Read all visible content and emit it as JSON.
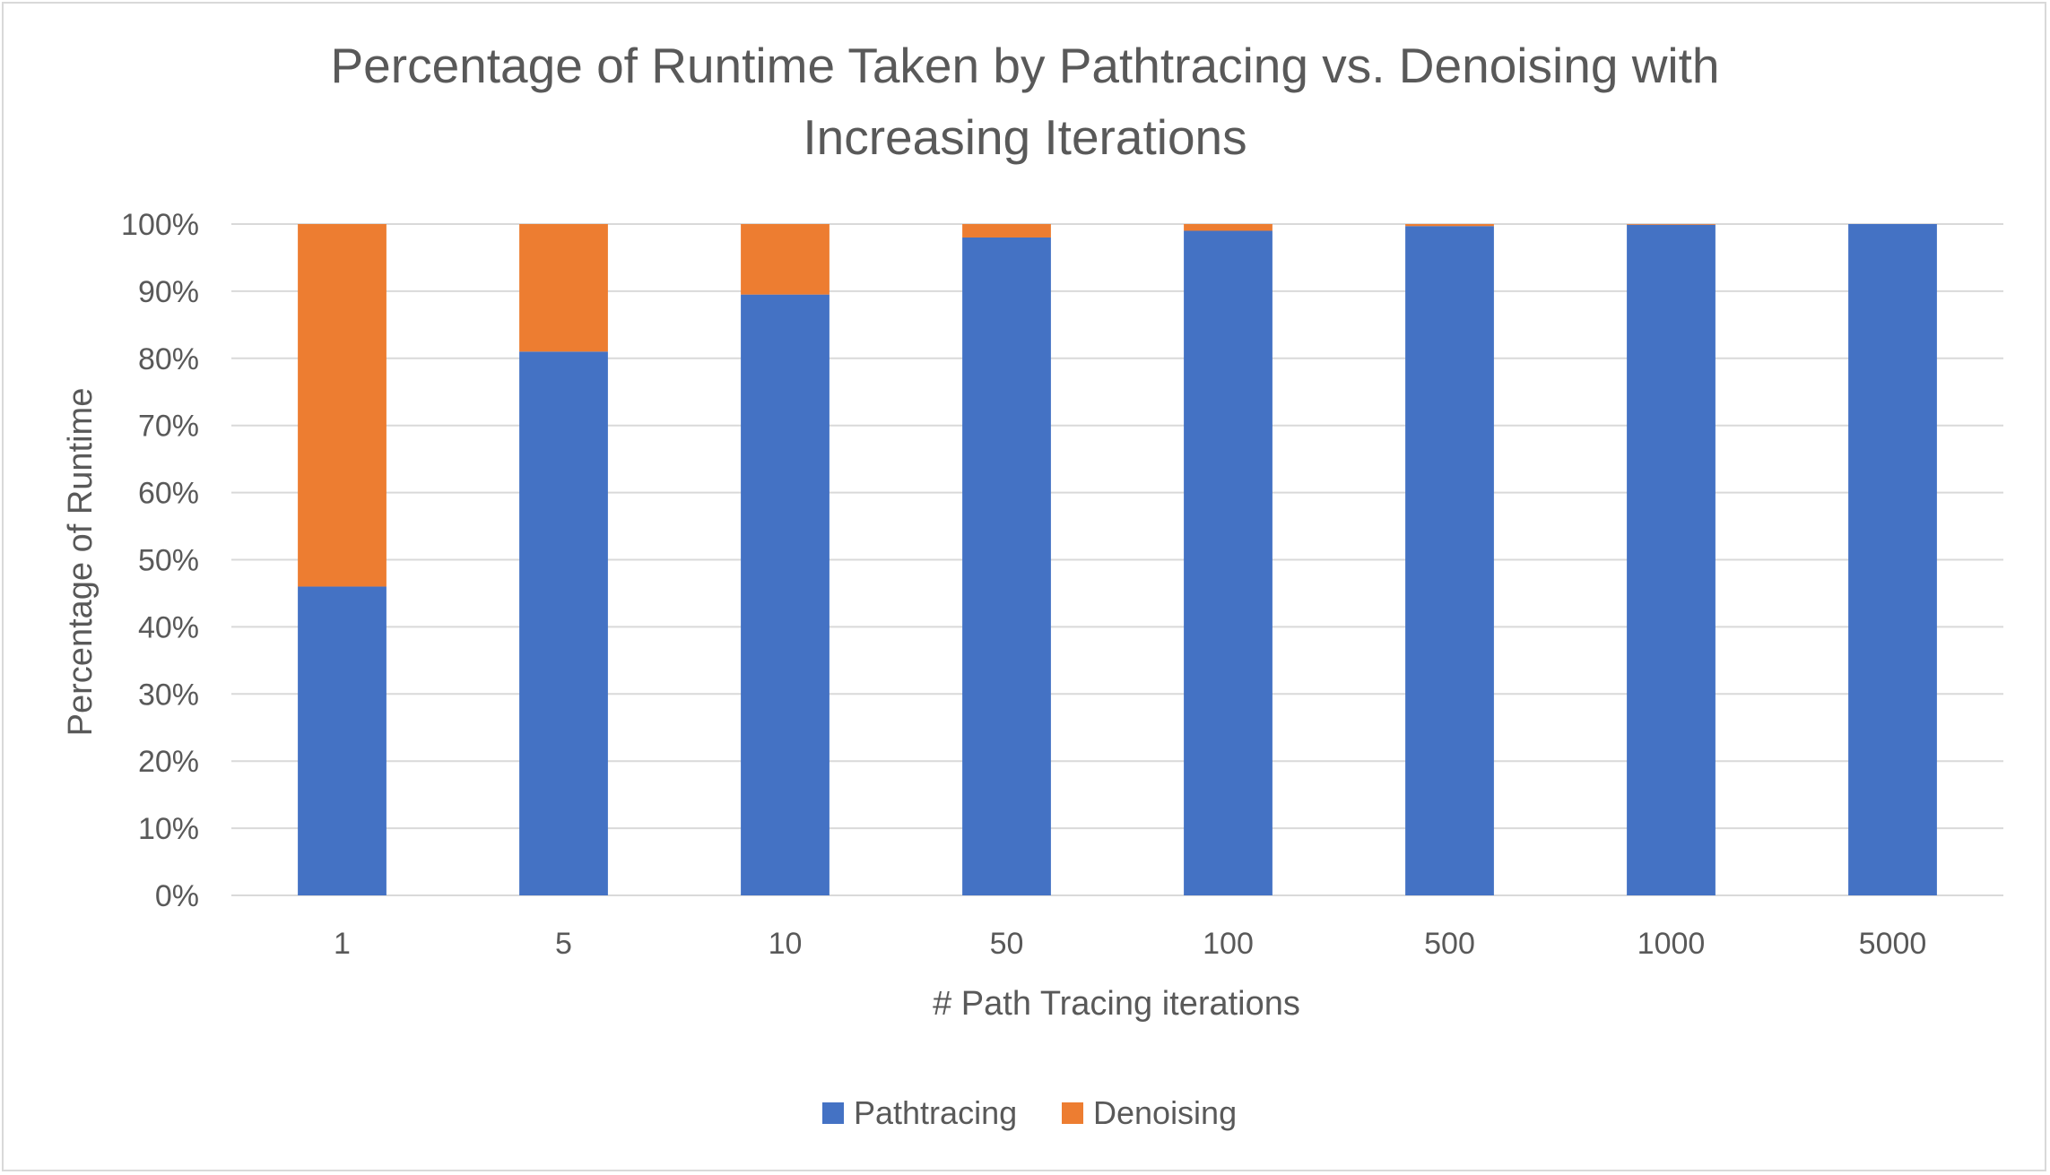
{
  "chart_data": {
    "type": "bar",
    "stacked": true,
    "title_lines": [
      "Percentage of Runtime Taken by Pathtracing vs. Denoising with",
      "Increasing Iterations"
    ],
    "xlabel": "# Path Tracing iterations",
    "ylabel": "Percentage of Runtime",
    "categories": [
      "1",
      "5",
      "10",
      "50",
      "100",
      "500",
      "1000",
      "5000"
    ],
    "series": [
      {
        "name": "Pathtracing",
        "color": "#4472c4",
        "values": [
          46,
          81,
          89.5,
          98,
          99,
          99.7,
          99.9,
          100
        ]
      },
      {
        "name": "Denoising",
        "color": "#ed7d31",
        "values": [
          54,
          19,
          10.5,
          2,
          1,
          0.3,
          0.1,
          0
        ]
      }
    ],
    "ylim": [
      0,
      100
    ],
    "yticks": [
      "0%",
      "10%",
      "20%",
      "30%",
      "40%",
      "50%",
      "60%",
      "70%",
      "80%",
      "90%",
      "100%"
    ],
    "grid": true,
    "legend_position": "bottom",
    "gridline_color": "#d9d9d9"
  }
}
